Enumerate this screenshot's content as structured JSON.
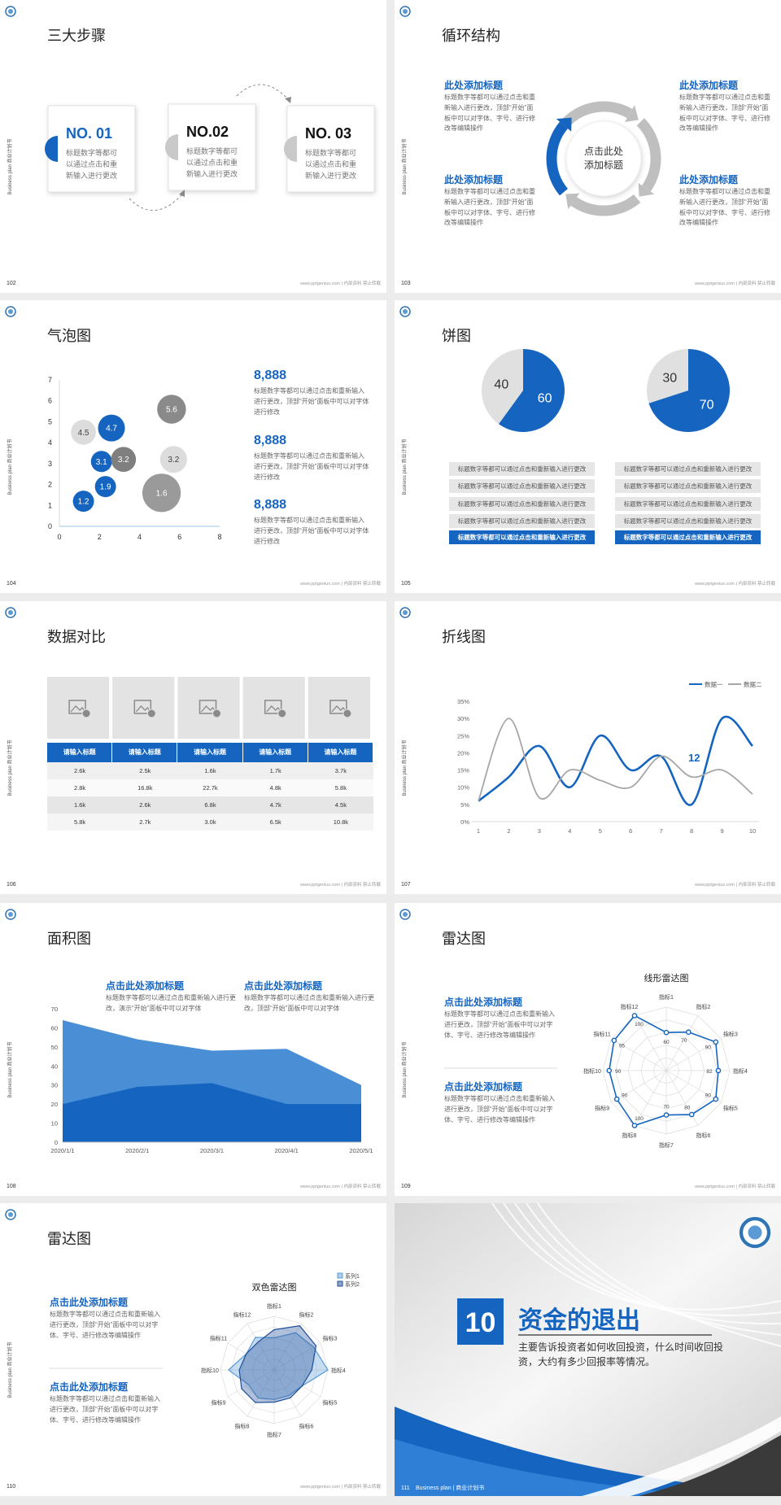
{
  "side_label": "Business plan 商业计划书",
  "footer_note": "www.pptgenius.com | 内部资料 禁止转载",
  "slides": [
    {
      "page": 102,
      "title": "三大步骤",
      "kind": "steps",
      "steps": [
        {
          "label": "NO. 01",
          "text": "标题数字等都可以通过点击和重新输入进行更改"
        },
        {
          "label": "NO.02",
          "text": "标题数字等都可以通过点击和重新输入进行更改"
        },
        {
          "label": "NO. 03",
          "text": "标题数字等都可以通过点击和重新输入进行更改"
        }
      ]
    },
    {
      "page": 103,
      "title": "循环结构",
      "kind": "cycle",
      "center": "点击此处添加标题",
      "blocks": [
        {
          "heading": "此处添加标题",
          "text": "标题数字等都可以通过点击和重新输入进行更改，顶部“开始”面板中可以对字体、字号、进行修改等编辑操作"
        },
        {
          "heading": "此处添加标题",
          "text": "标题数字等都可以通过点击和重新输入进行更改，顶部“开始”面板中可以对字体、字号、进行修改等编辑操作"
        },
        {
          "heading": "此处添加标题",
          "text": "标题数字等都可以通过点击和重新输入进行更改，顶部“开始”面板中可以对字体、字号、进行修改等编辑操作"
        },
        {
          "heading": "此处添加标题",
          "text": "标题数字等都可以通过点击和重新输入进行更改，顶部“开始”面板中可以对字体、字号、进行修改等编辑操作"
        }
      ]
    },
    {
      "page": 104,
      "title": "气泡图",
      "kind": "bubble",
      "chart": {
        "type": "scatter",
        "xlim": [
          0,
          8
        ],
        "ylim": [
          0,
          7
        ],
        "xticks": [
          0,
          2,
          4,
          6,
          8
        ],
        "yticks": [
          0,
          1,
          2,
          3,
          4,
          5,
          6,
          7
        ],
        "x": [
          1.2,
          2.3,
          2.1,
          3.2,
          2.6,
          1.2,
          5.6,
          5.7,
          5.1
        ],
        "y": [
          1.2,
          1.9,
          3.1,
          3.2,
          4.7,
          4.5,
          5.6,
          3.2,
          1.6
        ],
        "size": [
          11,
          11,
          11,
          13,
          14,
          13,
          15,
          14,
          20
        ],
        "colors": [
          "#1565c0",
          "#1565c0",
          "#1565c0",
          "#7f7f7f",
          "#1565c0",
          "#dcdcdc",
          "#8a8a8a",
          "#dcdcdc",
          "#9a9a9a"
        ]
      },
      "blocks": [
        {
          "heading": "8,888",
          "text": "标题数字等都可以通过点击和重新输入进行更改，顶部“开始”面板中可以对字体进行修改"
        },
        {
          "heading": "8,888",
          "text": "标题数字等都可以通过点击和重新输入进行更改，顶部“开始”面板中可以对字体进行修改"
        },
        {
          "heading": "8,888",
          "text": "标题数字等都可以通过点击和重新输入进行更改，顶部“开始”面板中可以对字体进行修改"
        }
      ]
    },
    {
      "page": 105,
      "title": "饼图",
      "kind": "pies",
      "charts": [
        {
          "type": "pie",
          "values": [
            40,
            60
          ],
          "colors": [
            "#e0e0e0",
            "#1565c0"
          ]
        },
        {
          "type": "pie",
          "values": [
            30,
            70
          ],
          "colors": [
            "#e0e0e0",
            "#1565c0"
          ]
        }
      ],
      "lists": [
        [
          "标题数字等都可以通过点击和重新输入进行更改",
          "标题数字等都可以通过点击和重新输入进行更改",
          "标题数字等都可以通过点击和重新输入进行更改",
          "标题数字等都可以通过点击和重新输入进行更改",
          "标题数字等都可以通过点击和重新输入进行更改"
        ],
        [
          "标题数字等都可以通过点击和重新输入进行更改",
          "标题数字等都可以通过点击和重新输入进行更改",
          "标题数字等都可以通过点击和重新输入进行更改",
          "标题数字等都可以通过点击和重新输入进行更改",
          "标题数字等都可以通过点击和重新输入进行更改"
        ]
      ]
    },
    {
      "page": 106,
      "title": "数据对比",
      "kind": "table",
      "table": {
        "header": [
          "请输入标题",
          "请输入标题",
          "请输入标题",
          "请输入标题",
          "请输入标题"
        ],
        "rows": [
          [
            "2.6k",
            "2.5k",
            "1.6k",
            "1.7k",
            "3.7k"
          ],
          [
            "2.8k",
            "16.8k",
            "22.7k",
            "4.8k",
            "5.8k"
          ],
          [
            "1.6k",
            "2.6k",
            "6.8k",
            "4.7k",
            "4.5k"
          ],
          [
            "5.8k",
            "2.7k",
            "3.0k",
            "6.5k",
            "10.8k"
          ]
        ]
      }
    },
    {
      "page": 107,
      "title": "折线图",
      "kind": "line",
      "chart": {
        "type": "line",
        "x": [
          1,
          2,
          3,
          4,
          5,
          6,
          7,
          8,
          9,
          10
        ],
        "xlim": [
          1,
          10
        ],
        "xticks": [
          1,
          2,
          3,
          4,
          5,
          6,
          7,
          8,
          9,
          10
        ],
        "ylim": [
          0,
          35
        ],
        "yticks": [
          {
            "value": 0,
            "label": "0%"
          },
          {
            "value": 5,
            "label": "5%"
          },
          {
            "value": 10,
            "label": "10%"
          },
          {
            "value": 15,
            "label": "15%"
          },
          {
            "value": 20,
            "label": "20%"
          },
          {
            "value": 25,
            "label": "25%"
          },
          {
            "value": 30,
            "label": "30%"
          },
          {
            "value": 35,
            "label": "35%"
          }
        ],
        "series": [
          {
            "name": "数据一",
            "color": "#1565c0",
            "values": [
              6,
              13,
              22,
              10,
              25,
              15,
              19,
              5,
              30,
              22
            ]
          },
          {
            "name": "数据二",
            "color": "#a6a6a6",
            "values": [
              6,
              30,
              7,
              15,
              12,
              10,
              19,
              13,
              15,
              8
            ]
          }
        ],
        "annotation": "12"
      }
    },
    {
      "page": 108,
      "title": "面积图",
      "kind": "area",
      "chart": {
        "type": "area",
        "categories": [
          "2020/1/1",
          "2020/2/1",
          "2020/3/1",
          "2020/4/1",
          "2020/5/1"
        ],
        "ylim": [
          0,
          70
        ],
        "yticks": [
          0,
          10,
          20,
          30,
          40,
          50,
          60,
          70
        ],
        "series": [
          {
            "color": "#4a8fd6",
            "values": [
              64,
              54,
              48,
              49,
              30
            ]
          },
          {
            "color": "#1565c0",
            "values": [
              20,
              29,
              31,
              20,
              20
            ]
          }
        ]
      },
      "blocks": [
        {
          "heading": "点击此处添加标题",
          "text": "标题数字等都可以通过点击和重新输入进行更改，演示“开始”面板中可以对字体"
        },
        {
          "heading": "点击此处添加标题",
          "text": "标题数字等都可以通过点击和重新输入进行更改，顶部“开始”面板中可以对字体"
        }
      ]
    },
    {
      "page": 109,
      "title": "雷达图",
      "kind": "radar",
      "chart": {
        "type": "radar",
        "title": "线形雷达图",
        "categories": [
          "指标1",
          "指标2",
          "指标3",
          "指标4",
          "指标5",
          "指标6",
          "指标7",
          "指标8",
          "指标9",
          "指标10",
          "指标11",
          "指标12"
        ],
        "values": [
          60,
          70,
          90,
          82,
          90,
          80,
          70,
          100,
          90,
          90,
          95,
          100
        ],
        "color": "#1565c0",
        "ylim": [
          0,
          100
        ]
      },
      "blocks": [
        {
          "heading": "点击此处添加标题",
          "text": "标题数字等都可以通过点击和重新输入进行更改，顶部“开始”面板中可以对字体、字号、进行修改等编辑操作"
        },
        {
          "heading": "点击此处添加标题",
          "text": "标题数字等都可以通过点击和重新输入进行更改，顶部“开始”面板中可以对字体、字号、进行修改等编辑操作"
        }
      ]
    },
    {
      "page": 110,
      "title": "雷达图",
      "kind": "radar",
      "chart": {
        "type": "radar",
        "title": "双色雷达图",
        "categories": [
          "指标1",
          "指标2",
          "指标3",
          "指标4",
          "指标5",
          "指标6",
          "指标7",
          "指标8",
          "指标9",
          "指标10",
          "指标11",
          "指标12"
        ],
        "series": [
          {
            "name": "系列1",
            "color": "#5b9bd5",
            "values": [
              60,
              80,
              85,
              100,
              60,
              55,
              55,
              60,
              55,
              85,
              60,
              70
            ]
          },
          {
            "name": "系列2",
            "color": "#1f4e99",
            "values": [
              75,
              95,
              90,
              70,
              60,
              60,
              60,
              70,
              70,
              65,
              60,
              60
            ]
          }
        ],
        "ylim": [
          0,
          100
        ]
      },
      "blocks": [
        {
          "heading": "点击此处添加标题",
          "text": "标题数字等都可以通过点击和重新输入进行更改，顶部“开始”面板中可以对字体、字号、进行修改等编辑操作"
        },
        {
          "heading": "点击此处添加标题",
          "text": "标题数字等都可以通过点击和重新输入进行更改，顶部“开始”面板中可以对字体、字号、进行修改等编辑操作"
        }
      ]
    },
    {
      "page": 111,
      "kind": "cover",
      "number": 10,
      "title": "资金的退出",
      "subtitle": "主要告诉投资者如何收回投资，什么时间收回投资，大约有多少回报率等情况。",
      "footer": "Business plan | 商业计划书"
    }
  ]
}
